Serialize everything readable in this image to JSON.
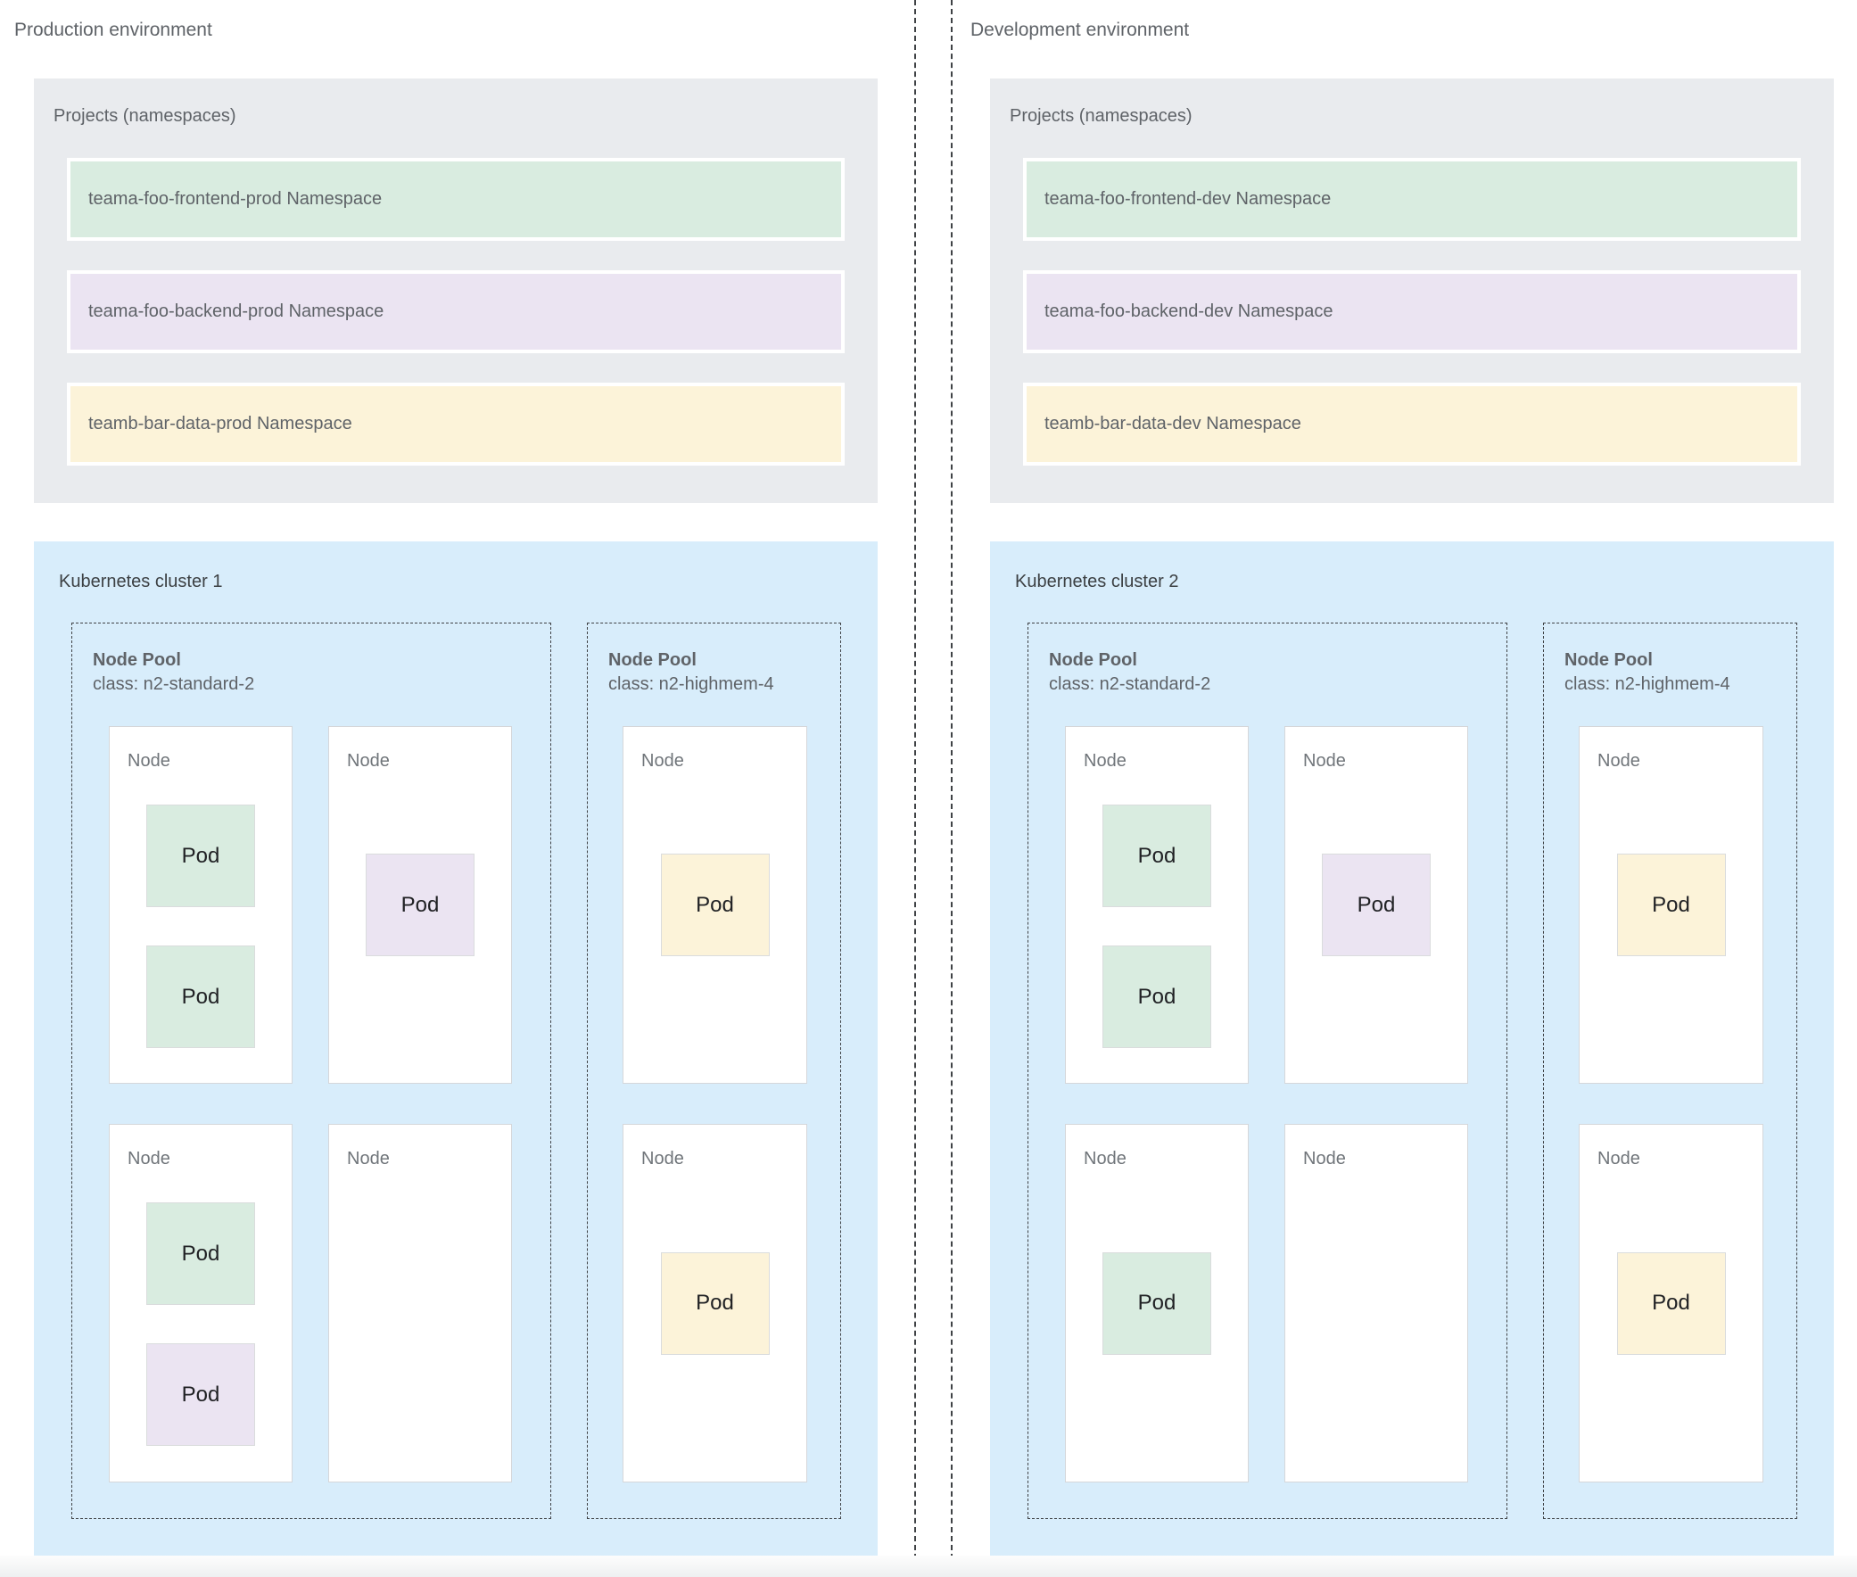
{
  "palette": {
    "green": "#d9ece0",
    "purple": "#ebe4f2",
    "yellow": "#fcf3d9",
    "cluster_blue": "#d8edfb",
    "projects_gray": "#e9ebee",
    "dash_gray": "#3f4245",
    "label_gray": "#5f6368"
  },
  "environments": [
    {
      "label": "Production environment",
      "projects": {
        "title": "Projects (namespaces)",
        "namespaces": [
          {
            "label": "teama-foo-frontend-prod Namespace",
            "color": "green"
          },
          {
            "label": "teama-foo-backend-prod Namespace",
            "color": "purple"
          },
          {
            "label": "teamb-bar-data-prod Namespace",
            "color": "yellow"
          }
        ]
      },
      "cluster": {
        "title": "Kubernetes cluster 1",
        "node_pools": [
          {
            "title": "Node Pool",
            "class_label": "class: n2-standard-2",
            "nodes": [
              {
                "label": "Node",
                "pods": [
                  {
                    "label": "Pod",
                    "color": "green"
                  },
                  {
                    "label": "Pod",
                    "color": "green"
                  }
                ]
              },
              {
                "label": "Node",
                "pods": [
                  {
                    "label": "Pod",
                    "color": "purple"
                  }
                ]
              },
              {
                "label": "Node",
                "pods": [
                  {
                    "label": "Pod",
                    "color": "green"
                  },
                  {
                    "label": "Pod",
                    "color": "purple"
                  }
                ]
              },
              {
                "label": "Node",
                "pods": []
              }
            ]
          },
          {
            "title": "Node Pool",
            "class_label": "class: n2-highmem-4",
            "nodes": [
              {
                "label": "Node",
                "pods": [
                  {
                    "label": "Pod",
                    "color": "yellow"
                  }
                ]
              },
              {
                "label": "Node",
                "pods": [
                  {
                    "label": "Pod",
                    "color": "yellow"
                  }
                ]
              }
            ]
          }
        ]
      }
    },
    {
      "label": "Development environment",
      "projects": {
        "title": "Projects (namespaces)",
        "namespaces": [
          {
            "label": "teama-foo-frontend-dev Namespace",
            "color": "green"
          },
          {
            "label": "teama-foo-backend-dev Namespace",
            "color": "purple"
          },
          {
            "label": "teamb-bar-data-dev Namespace",
            "color": "yellow"
          }
        ]
      },
      "cluster": {
        "title": "Kubernetes cluster 2",
        "node_pools": [
          {
            "title": "Node Pool",
            "class_label": "class: n2-standard-2",
            "nodes": [
              {
                "label": "Node",
                "pods": [
                  {
                    "label": "Pod",
                    "color": "green"
                  },
                  {
                    "label": "Pod",
                    "color": "green"
                  }
                ]
              },
              {
                "label": "Node",
                "pods": [
                  {
                    "label": "Pod",
                    "color": "purple"
                  }
                ]
              },
              {
                "label": "Node",
                "pods": [
                  {
                    "label": "Pod",
                    "color": "green"
                  }
                ]
              },
              {
                "label": "Node",
                "pods": []
              }
            ]
          },
          {
            "title": "Node Pool",
            "class_label": "class: n2-highmem-4",
            "nodes": [
              {
                "label": "Node",
                "pods": [
                  {
                    "label": "Pod",
                    "color": "yellow"
                  }
                ]
              },
              {
                "label": "Node",
                "pods": [
                  {
                    "label": "Pod",
                    "color": "yellow"
                  }
                ]
              }
            ]
          }
        ]
      }
    }
  ]
}
